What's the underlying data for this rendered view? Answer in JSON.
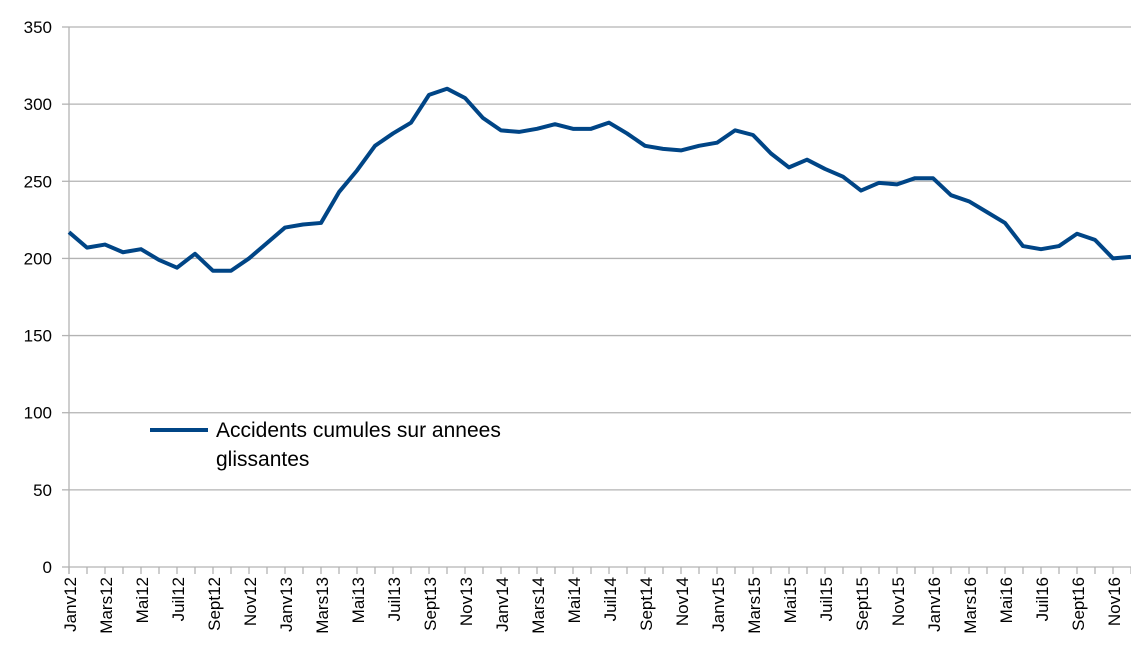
{
  "chart_data": {
    "type": "line",
    "categories": [
      "Janv12",
      null,
      "Mars12",
      null,
      "Mai12",
      null,
      "Juil12",
      null,
      "Sept12",
      null,
      "Nov12",
      null,
      "Janv13",
      null,
      "Mars13",
      null,
      "Mai13",
      null,
      "Juil13",
      null,
      "Sept13",
      null,
      "Nov13",
      null,
      "Janv14",
      null,
      "Mars14",
      null,
      "Mai14",
      null,
      "Juil14",
      null,
      "Sept14",
      null,
      "Nov14",
      null,
      "Janv15",
      null,
      "Mars15",
      null,
      "Mai15",
      null,
      "Juil15",
      null,
      "Sept15",
      null,
      "Nov15",
      null,
      "Janv16",
      null,
      "Mars16",
      null,
      "Mai16",
      null,
      "Juil16",
      null,
      "Sept16",
      null,
      "Nov16",
      null
    ],
    "series": [
      {
        "name": "Accidents cumules sur annees glissantes",
        "color": "#004586",
        "values": [
          217,
          207,
          209,
          204,
          206,
          199,
          194,
          203,
          192,
          192,
          200,
          210,
          220,
          222,
          223,
          243,
          257,
          273,
          281,
          288,
          306,
          310,
          304,
          291,
          283,
          282,
          284,
          287,
          284,
          284,
          288,
          281,
          273,
          271,
          270,
          273,
          275,
          283,
          280,
          268,
          259,
          264,
          258,
          253,
          244,
          249,
          248,
          252,
          252,
          241,
          237,
          230,
          223,
          208,
          206,
          208,
          216,
          212,
          200,
          201
        ]
      }
    ],
    "ylim": [
      0,
      350
    ],
    "yticks": [
      0,
      50,
      100,
      150,
      200,
      250,
      300,
      350
    ],
    "grid": true,
    "legend": "inside"
  }
}
